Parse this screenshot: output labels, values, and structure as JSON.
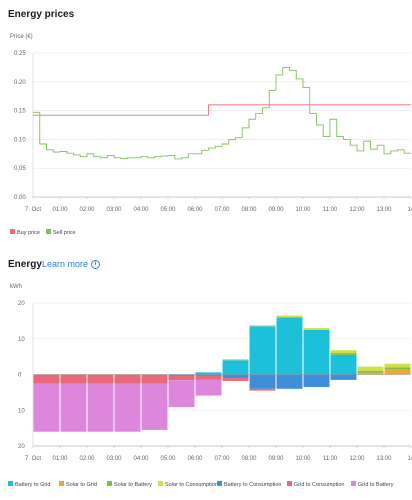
{
  "prices": {
    "title": "Energy prices",
    "ylabel": "Price (€)",
    "legend": [
      {
        "label": "Buy price",
        "color": "#ef6b73"
      },
      {
        "label": "Sell price",
        "color": "#7cc25a"
      }
    ]
  },
  "energy": {
    "title": "Energy",
    "learn_more": "Learn more",
    "ylabel": "kWh"
  },
  "chart_data": [
    {
      "type": "line",
      "title": "Energy prices",
      "ylabel": "Price (€)",
      "x_ticks": [
        "7. Oct",
        "01:00",
        "02:00",
        "03:00",
        "04:00",
        "05:00",
        "06:00",
        "07:00",
        "08:00",
        "09:00",
        "10:00",
        "11:00",
        "12:00",
        "13:00",
        "14"
      ],
      "y_ticks": [
        "0.00",
        "0.05",
        "0.10",
        "0.15",
        "0.20",
        "0.25"
      ],
      "ylim": [
        0,
        0.25
      ],
      "xlim": [
        0,
        14
      ],
      "series": [
        {
          "name": "Buy price",
          "color": "#ef6b73",
          "step": true,
          "x": [
            0,
            6.5,
            14
          ],
          "y": [
            0.142,
            0.16,
            0.16
          ]
        },
        {
          "name": "Sell price",
          "color": "#7cc25a",
          "step": true,
          "x": [
            0,
            0.25,
            0.5,
            0.75,
            1,
            1.25,
            1.5,
            1.75,
            2,
            2.25,
            2.5,
            2.75,
            3,
            3.25,
            3.5,
            3.75,
            4,
            4.25,
            4.5,
            4.75,
            5,
            5.25,
            5.5,
            5.75,
            6,
            6.25,
            6.5,
            6.75,
            7,
            7.25,
            7.5,
            7.75,
            8,
            8.25,
            8.5,
            8.75,
            9,
            9.25,
            9.5,
            9.75,
            10,
            10.25,
            10.5,
            10.75,
            11,
            11.25,
            11.5,
            11.75,
            12,
            12.25,
            12.5,
            12.75,
            13,
            13.25,
            13.5,
            13.75
          ],
          "y": [
            0.147,
            0.092,
            0.082,
            0.078,
            0.079,
            0.076,
            0.073,
            0.07,
            0.075,
            0.07,
            0.068,
            0.072,
            0.068,
            0.067,
            0.068,
            0.068,
            0.07,
            0.068,
            0.07,
            0.071,
            0.072,
            0.066,
            0.068,
            0.075,
            0.075,
            0.081,
            0.085,
            0.088,
            0.092,
            0.1,
            0.103,
            0.12,
            0.135,
            0.145,
            0.155,
            0.185,
            0.212,
            0.225,
            0.22,
            0.205,
            0.19,
            0.145,
            0.125,
            0.105,
            0.135,
            0.105,
            0.1,
            0.09,
            0.08,
            0.097,
            0.083,
            0.09,
            0.075,
            0.08,
            0.082,
            0.076
          ]
        }
      ]
    },
    {
      "type": "bar",
      "title": "Energy",
      "ylabel": "kWh",
      "stacked": true,
      "x_ticks": [
        "7. Oct",
        "01:00",
        "02:00",
        "03:00",
        "04:00",
        "05:00",
        "06:00",
        "07:00",
        "08:00",
        "09:00",
        "10:00",
        "11:00",
        "12:00",
        "13:00",
        "14"
      ],
      "y_ticks": [
        "20",
        "10",
        "0",
        "10",
        "20"
      ],
      "ylim": [
        -20,
        20
      ],
      "categories": [
        0,
        1,
        2,
        3,
        4,
        5,
        6,
        7,
        8,
        9,
        10,
        11,
        12,
        13
      ],
      "series": [
        {
          "name": "Battery to Grid",
          "color": "#1cc0d8",
          "values": [
            0,
            0,
            0,
            0,
            0,
            0,
            0.6,
            4.0,
            13.5,
            16.0,
            12.5,
            5.5,
            0,
            0
          ]
        },
        {
          "name": "Solar to Grid",
          "color": "#f0a630",
          "values": [
            0,
            0,
            0,
            0,
            0,
            0,
            0,
            0,
            0,
            0,
            0,
            0,
            0.5,
            1.5
          ]
        },
        {
          "name": "Solar to Battery",
          "color": "#7ac143",
          "values": [
            0,
            0,
            0,
            0,
            0,
            0,
            0,
            0,
            0,
            0,
            0,
            0.5,
            0.5,
            0.5
          ]
        },
        {
          "name": "Solar to Consumption",
          "color": "#cfe04a",
          "values": [
            0,
            0,
            0,
            0,
            0,
            0,
            0,
            0.3,
            0.3,
            0.5,
            0.5,
            0.8,
            1.2,
            1.0
          ]
        },
        {
          "name": "Battery to Consumption",
          "color": "#3f8fd8",
          "values": [
            0,
            0,
            0,
            0,
            0,
            -0.4,
            -0.4,
            -1.0,
            -4.0,
            -4.0,
            -3.5,
            -1.5,
            0,
            0
          ]
        },
        {
          "name": "Grid to Consumption",
          "color": "#e8697a",
          "values": [
            -2.5,
            -2.5,
            -2.5,
            -2.5,
            -2.5,
            -1.2,
            -1.0,
            -0.8,
            -0.5,
            0,
            0,
            0,
            0,
            0
          ]
        },
        {
          "name": "Grid to Battery",
          "color": "#dc86dc",
          "values": [
            -13.5,
            -13.5,
            -13.5,
            -13.5,
            -13.0,
            -7.5,
            -4.5,
            0,
            0,
            0,
            0,
            0,
            0,
            0
          ]
        }
      ]
    }
  ]
}
